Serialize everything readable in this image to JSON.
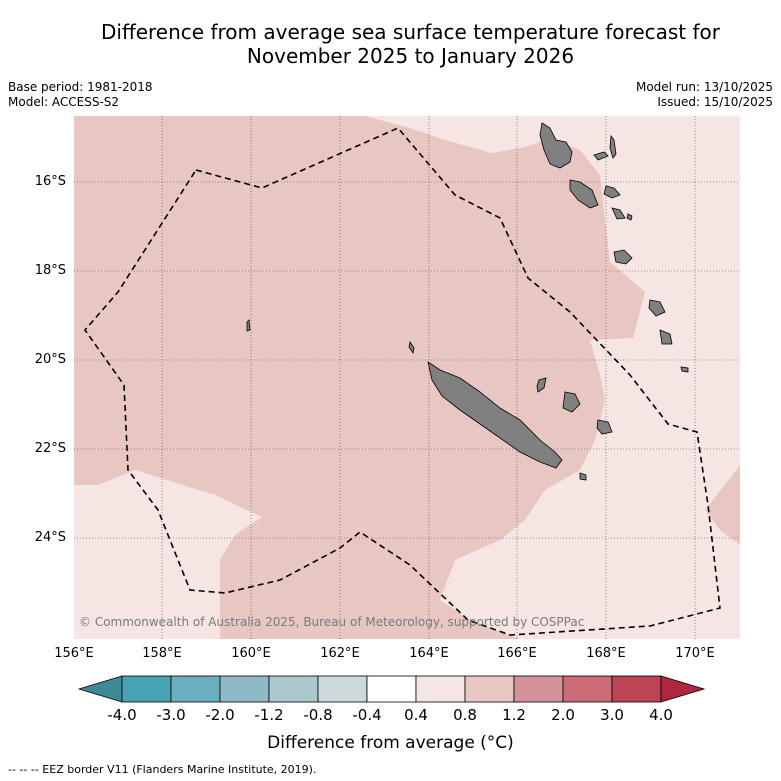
{
  "title": {
    "line1": "Difference from average sea surface temperature forecast for",
    "line2": "November 2025 to January 2026"
  },
  "meta": {
    "base_period": "Base period: 1981-2018",
    "model": "Model: ACCESS-S2",
    "model_run": "Model run: 13/10/2025",
    "issued": "Issued: 15/10/2025"
  },
  "map": {
    "lon_range": [
      156,
      171
    ],
    "lat_range": [
      -26.2,
      -14.6
    ],
    "lat_labels": [
      "16°S",
      "18°S",
      "20°S",
      "22°S",
      "24°S"
    ],
    "lon_labels": [
      "156°E",
      "158°E",
      "160°E",
      "162°E",
      "164°E",
      "166°E",
      "168°E",
      "170°E"
    ],
    "copyright": "© Commonwealth of Australia 2025, Bureau of Meteorology, supported by COSPPac",
    "colors": {
      "anomaly_0_8_to_1_2": "#e8c7c2",
      "anomaly_0_4_to_0_8": "#f5e6e4",
      "land": "#808080",
      "eez_border": "#000000"
    }
  },
  "colorbar": {
    "labels": [
      "-4.0",
      "-3.0",
      "-2.0",
      "-1.2",
      "-0.8",
      "-0.4",
      "0.4",
      "0.8",
      "1.2",
      "2.0",
      "3.0",
      "4.0"
    ],
    "colors": [
      "#3e8a96",
      "#47a3b2",
      "#6aafbf",
      "#8fbac5",
      "#abc9cd",
      "#cdd9db",
      "#ffffff",
      "#f5e6e4",
      "#e8c7c2",
      "#d6929a",
      "#cb6b76",
      "#bd4455",
      "#ad2740"
    ],
    "title": "Difference from average (°C)"
  },
  "legend": {
    "eez_label": "-- -- -- EEZ border V11 (Flanders Marine Institute, 2019)."
  }
}
